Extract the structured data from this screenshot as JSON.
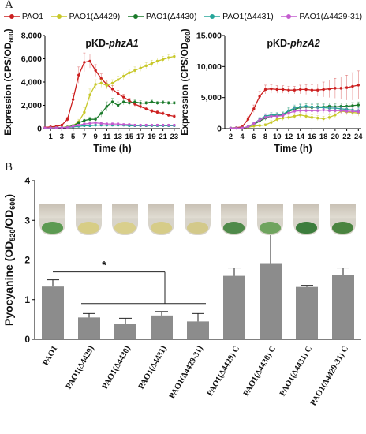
{
  "panels": {
    "a_label": "A",
    "b_label": "B"
  },
  "colors": {
    "PAO1": "#cc1f1f",
    "PAO1(Δ4429)": "#c8c82a",
    "PAO1(Δ4430)": "#1a7a2a",
    "PAO1(Δ4431)": "#26a69a",
    "PAO1(Δ4429-31)": "#c45ccf",
    "bar": "#8c8c8c"
  },
  "legend": [
    "PAO1",
    "PAO1(Δ4429)",
    "PAO1(Δ4430)",
    "PAO1(Δ4431)",
    "PAO1(Δ4429-31)"
  ],
  "chart_data": [
    {
      "type": "line",
      "title": "pKD-phzA1",
      "title_plain": "pKD-",
      "title_italic": "phzA1",
      "xlabel": "Time (h)",
      "ylabel": "Expression (CPS/OD600)",
      "ylabel_main": "Expression (CPS/OD",
      "ylabel_sub": "600",
      "ylabel_end": ")",
      "xlim": [
        0,
        24
      ],
      "ylim": [
        0,
        8000
      ],
      "x_ticks": [
        "1",
        "3",
        "5",
        "7",
        "9",
        "11",
        "13",
        "15",
        "17",
        "19",
        "21",
        "23"
      ],
      "y_ticks": [
        "0",
        "2,000",
        "4,000",
        "6,000",
        "8,000"
      ],
      "x": [
        0,
        1,
        2,
        3,
        4,
        5,
        6,
        7,
        8,
        9,
        10,
        11,
        12,
        13,
        14,
        15,
        16,
        17,
        18,
        19,
        20,
        21,
        22,
        23
      ],
      "series": [
        {
          "name": "PAO1",
          "values": [
            100,
            150,
            180,
            300,
            800,
            2500,
            4600,
            5700,
            5800,
            5000,
            4300,
            3800,
            3400,
            3000,
            2700,
            2400,
            2100,
            1900,
            1700,
            1500,
            1400,
            1300,
            1150,
            1050
          ],
          "err": [
            40,
            40,
            50,
            80,
            200,
            500,
            700,
            800,
            600,
            500,
            400,
            350,
            300,
            280,
            250,
            220,
            200,
            180,
            160,
            150,
            140,
            130,
            120,
            110
          ]
        },
        {
          "name": "PAO1(Δ4429)",
          "values": [
            50,
            60,
            80,
            100,
            150,
            250,
            600,
            1400,
            2900,
            3800,
            3900,
            3700,
            3900,
            4200,
            4500,
            4800,
            5000,
            5200,
            5400,
            5600,
            5800,
            5950,
            6100,
            6200
          ],
          "err": [
            20,
            20,
            30,
            40,
            60,
            100,
            200,
            400,
            500,
            400,
            350,
            300,
            300,
            300,
            300,
            300,
            300,
            280,
            280,
            280,
            270,
            260,
            260,
            250
          ]
        },
        {
          "name": "PAO1(Δ4430)",
          "values": [
            50,
            60,
            70,
            80,
            120,
            250,
            500,
            700,
            800,
            800,
            1300,
            1900,
            2300,
            2000,
            2300,
            2200,
            2300,
            2200,
            2200,
            2300,
            2200,
            2250,
            2200,
            2200
          ],
          "err": [
            20,
            20,
            20,
            30,
            40,
            80,
            150,
            200,
            200,
            200,
            300,
            400,
            300,
            300,
            250,
            200,
            200,
            200,
            150,
            150,
            150,
            150,
            150,
            150
          ]
        },
        {
          "name": "PAO1(Δ4431)",
          "values": [
            60,
            60,
            70,
            80,
            100,
            150,
            200,
            250,
            250,
            300,
            300,
            300,
            300,
            300,
            300,
            250,
            250,
            250,
            250,
            250,
            250,
            250,
            250,
            250
          ],
          "err": [
            20,
            20,
            20,
            30,
            40,
            50,
            60,
            60,
            60,
            60,
            60,
            60,
            60,
            60,
            50,
            50,
            50,
            50,
            50,
            50,
            50,
            50,
            50,
            50
          ]
        },
        {
          "name": "PAO1(Δ4429-31)",
          "values": [
            60,
            60,
            70,
            80,
            100,
            200,
            300,
            400,
            450,
            500,
            450,
            400,
            400,
            400,
            350,
            350,
            300,
            300,
            300,
            300,
            300,
            300,
            300,
            300
          ],
          "err": [
            20,
            20,
            20,
            30,
            40,
            60,
            80,
            100,
            100,
            100,
            100,
            100,
            100,
            100,
            80,
            80,
            80,
            80,
            80,
            80,
            80,
            80,
            80,
            80
          ]
        }
      ]
    },
    {
      "type": "line",
      "title": "pKD-phzA2",
      "title_plain": "pKD-",
      "title_italic": "phzA2",
      "xlabel": "Time (h)",
      "ylabel": "Expression (CPS/OD600)",
      "ylabel_main": "Expression (CPS/OD",
      "ylabel_sub": "600",
      "ylabel_end": ")",
      "xlim": [
        1,
        24.5
      ],
      "ylim": [
        0,
        15000
      ],
      "x_ticks": [
        "2",
        "4",
        "6",
        "8",
        "10",
        "12",
        "14",
        "16",
        "18",
        "20",
        "22",
        "24"
      ],
      "y_ticks": [
        "0",
        "5,000",
        "10,000",
        "15,000"
      ],
      "x": [
        2,
        3,
        4,
        5,
        6,
        7,
        8,
        9,
        10,
        11,
        12,
        13,
        14,
        15,
        16,
        17,
        18,
        19,
        20,
        21,
        22,
        23,
        24
      ],
      "series": [
        {
          "name": "PAO1",
          "values": [
            100,
            150,
            300,
            1500,
            3200,
            5200,
            6300,
            6400,
            6300,
            6300,
            6200,
            6200,
            6300,
            6300,
            6200,
            6200,
            6300,
            6400,
            6500,
            6500,
            6600,
            6800,
            7000
          ],
          "err": [
            50,
            60,
            100,
            400,
            600,
            800,
            700,
            700,
            600,
            600,
            600,
            600,
            700,
            800,
            900,
            1000,
            1200,
            1400,
            1600,
            1800,
            2000,
            2200,
            2300
          ]
        },
        {
          "name": "PAO1(Δ4429)",
          "values": [
            80,
            80,
            100,
            200,
            400,
            500,
            600,
            1000,
            1500,
            1700,
            1800,
            2000,
            2200,
            2000,
            1800,
            1700,
            1600,
            1800,
            2200,
            2800,
            2700,
            2600,
            2500
          ],
          "err": [
            30,
            30,
            40,
            60,
            100,
            150,
            200,
            300,
            400,
            400,
            400,
            400,
            400,
            400,
            400,
            400,
            400,
            400,
            500,
            500,
            500,
            500,
            500
          ]
        },
        {
          "name": "PAO1(Δ4430)",
          "values": [
            80,
            80,
            100,
            300,
            700,
            1200,
            1700,
            2000,
            2100,
            2200,
            2800,
            3100,
            3400,
            3500,
            3400,
            3500,
            3500,
            3600,
            3500,
            3600,
            3600,
            3700,
            3800
          ],
          "err": [
            30,
            30,
            40,
            100,
            200,
            300,
            400,
            400,
            400,
            400,
            500,
            500,
            500,
            500,
            500,
            500,
            500,
            500,
            500,
            500,
            500,
            500,
            500
          ]
        },
        {
          "name": "PAO1(Δ4431)",
          "values": [
            80,
            80,
            100,
            300,
            800,
            1500,
            2000,
            2200,
            2200,
            2300,
            2900,
            3300,
            3500,
            3600,
            3500,
            3400,
            3400,
            3300,
            3300,
            3200,
            3100,
            3000,
            2900
          ],
          "err": [
            30,
            30,
            40,
            100,
            200,
            300,
            400,
            400,
            400,
            400,
            500,
            500,
            500,
            500,
            500,
            500,
            500,
            500,
            500,
            500,
            500,
            500,
            500
          ]
        },
        {
          "name": "PAO1(Δ4429-31)",
          "values": [
            80,
            80,
            100,
            300,
            800,
            1400,
            1800,
            2000,
            2000,
            2100,
            2500,
            2800,
            2900,
            2900,
            2900,
            2900,
            3000,
            2900,
            2900,
            2900,
            2800,
            2800,
            2700
          ],
          "err": [
            30,
            30,
            40,
            100,
            200,
            300,
            400,
            400,
            400,
            400,
            500,
            500,
            500,
            500,
            500,
            500,
            500,
            500,
            500,
            500,
            500,
            500,
            500
          ]
        }
      ]
    },
    {
      "type": "bar",
      "ylabel": "Pyocyanine (OD520/OD600)",
      "ylabel_main": "Pyocyanine (OD",
      "ylabel_sub1": "520",
      "ylabel_mid": "/OD",
      "ylabel_sub2": "600",
      "ylabel_end": ")",
      "ylim": [
        0,
        4
      ],
      "y_ticks": [
        "0",
        "1",
        "2",
        "3",
        "4"
      ],
      "categories": [
        "PAO1",
        "PAO1(Δ4429)",
        "PAO1(Δ4430)",
        "PAO1(Δ4431)",
        "PAO1(Δ4429-31)",
        "PAO1(Δ4429) C",
        "PAO1(Δ4430) C",
        "PAO1(Δ4431) C",
        "PAO1(Δ4429-31) C"
      ],
      "values": [
        1.33,
        0.55,
        0.38,
        0.6,
        0.45,
        1.6,
        1.92,
        1.32,
        1.62
      ],
      "errors": [
        0.17,
        0.1,
        0.15,
        0.1,
        0.2,
        0.2,
        1.0,
        0.04,
        0.18
      ],
      "annotation": "*",
      "tube_colors": [
        "#5c9a52",
        "#d7cd86",
        "#d9cf8c",
        "#d6cc88",
        "#d3c98a",
        "#4f8a4a",
        "#6fa45f",
        "#3d7d3d",
        "#4a8440"
      ]
    }
  ]
}
